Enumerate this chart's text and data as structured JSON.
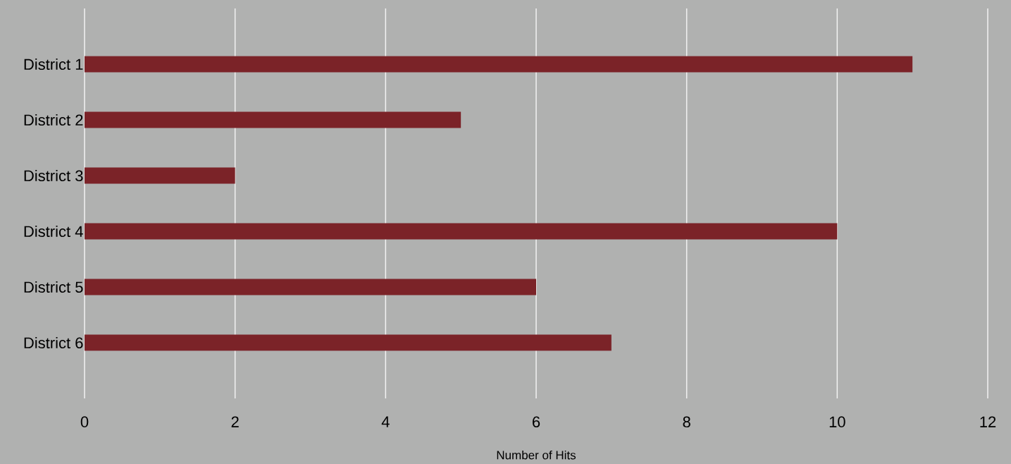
{
  "chart_data": {
    "type": "bar",
    "orientation": "horizontal",
    "xlabel": "Number of Hits",
    "categories": [
      "District 1",
      "District 2",
      "District 3",
      "District 4",
      "District 5",
      "District 6"
    ],
    "values": [
      11,
      5,
      2,
      10,
      6,
      7
    ],
    "color": "#7b2328",
    "xlim": [
      0,
      12
    ],
    "xticks": [
      0,
      2,
      4,
      6,
      8,
      10,
      12
    ],
    "grid": "x"
  }
}
